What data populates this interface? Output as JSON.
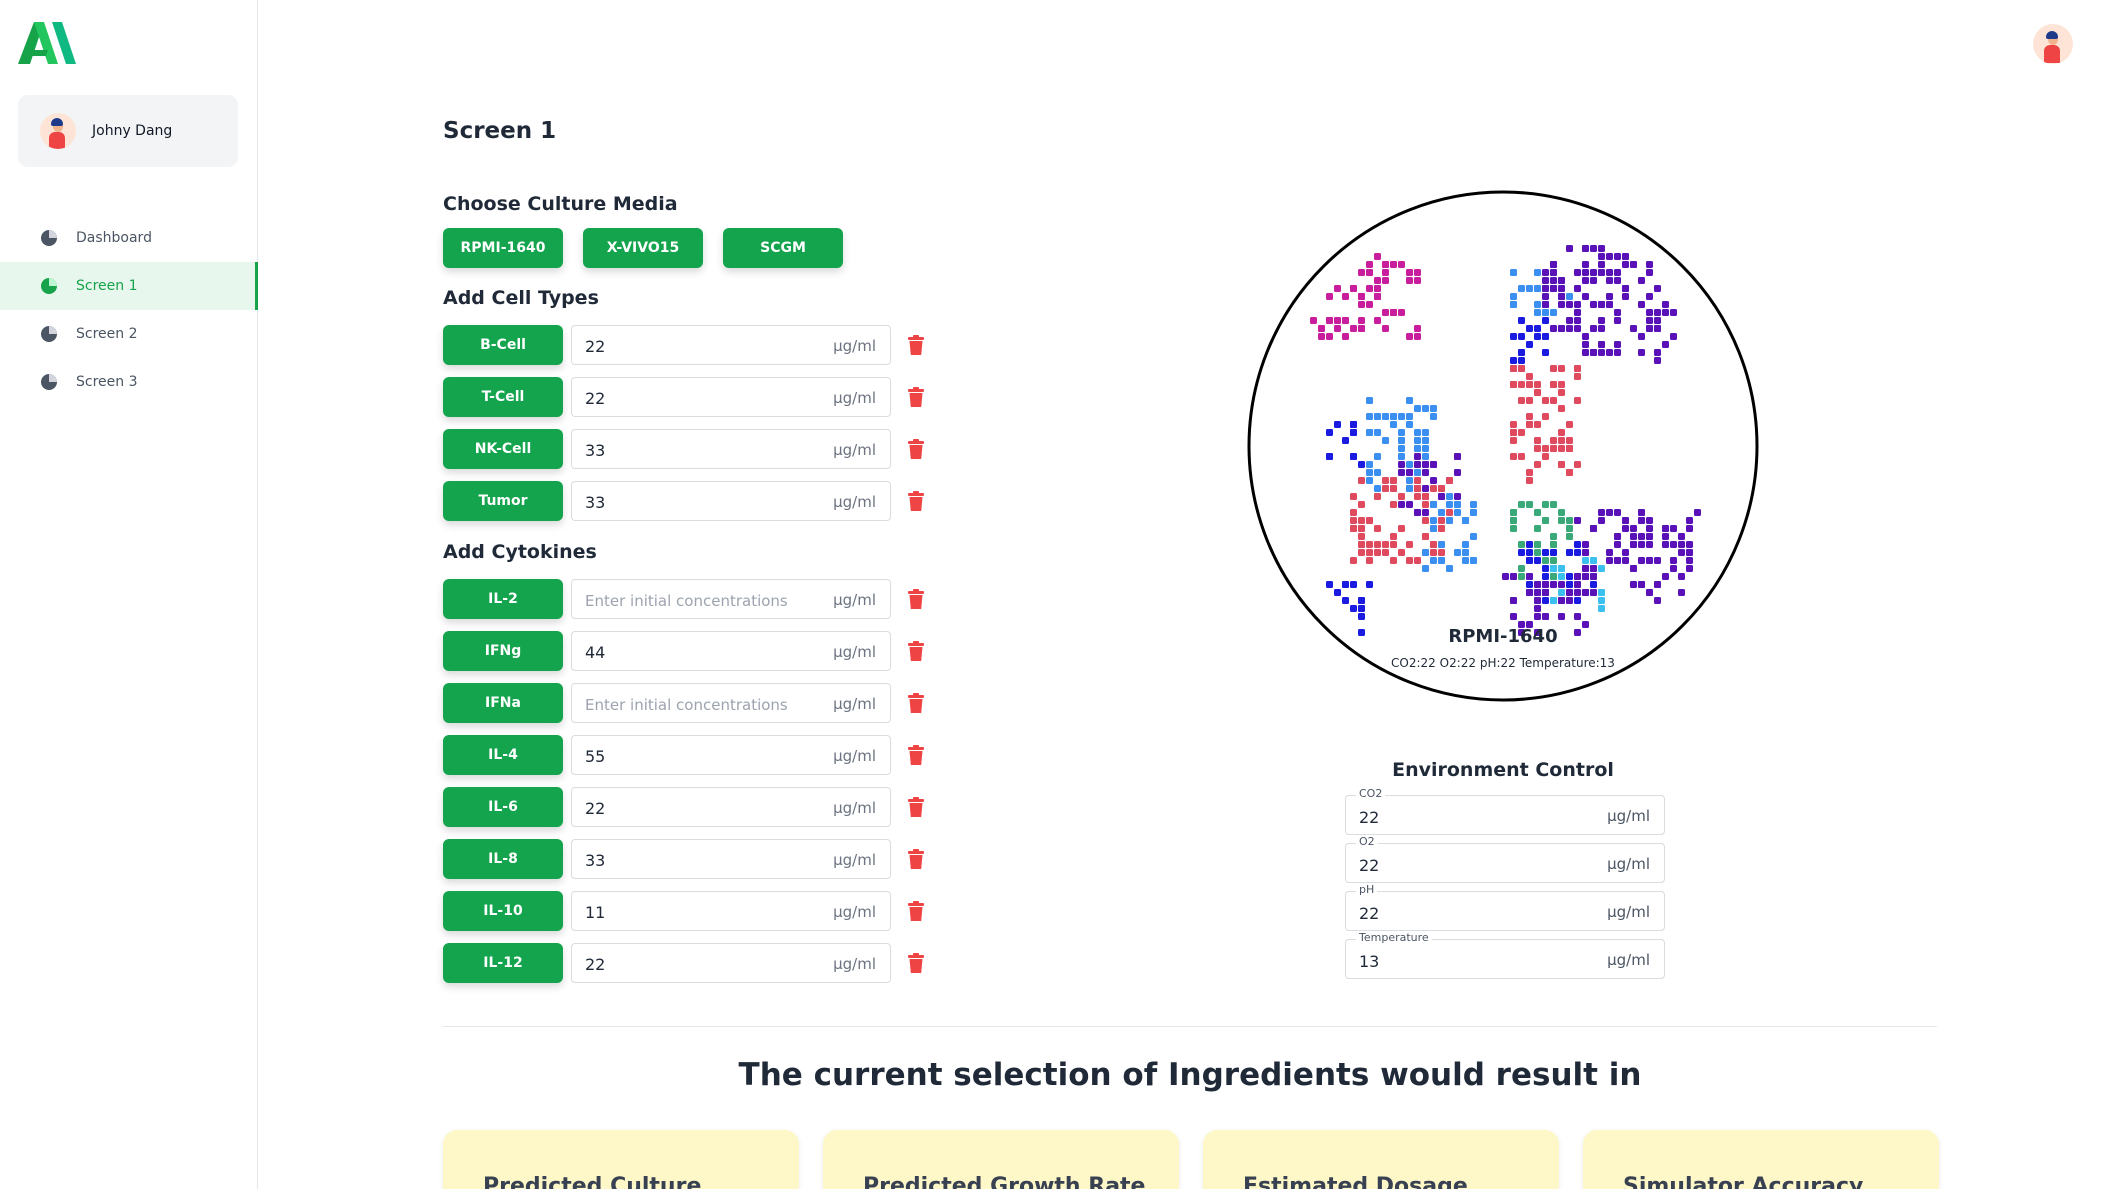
{
  "user": {
    "name": "Johny Dang"
  },
  "nav": [
    {
      "label": "Dashboard"
    },
    {
      "label": "Screen 1"
    },
    {
      "label": "Screen 2"
    },
    {
      "label": "Screen 3"
    }
  ],
  "page": {
    "title": "Screen 1"
  },
  "culture_media": {
    "title": "Choose Culture Media",
    "options": [
      "RPMI-1640",
      "X-VIVO15",
      "SCGM"
    ]
  },
  "cell_types": {
    "title": "Add Cell Types",
    "unit": "μg/ml",
    "items": [
      {
        "label": "B-Cell",
        "value": "22"
      },
      {
        "label": "T-Cell",
        "value": "22"
      },
      {
        "label": "NK-Cell",
        "value": "33"
      },
      {
        "label": "Tumor",
        "value": "33"
      }
    ]
  },
  "cytokines": {
    "title": "Add Cytokines",
    "unit": "μg/ml",
    "placeholder": "Enter initial concentrations",
    "items": [
      {
        "label": "IL-2",
        "value": ""
      },
      {
        "label": "IFNg",
        "value": "44"
      },
      {
        "label": "IFNa",
        "value": ""
      },
      {
        "label": "IL-4",
        "value": "55"
      },
      {
        "label": "IL-6",
        "value": "22"
      },
      {
        "label": "IL-8",
        "value": "33"
      },
      {
        "label": "IL-10",
        "value": "11"
      },
      {
        "label": "IL-12",
        "value": "22"
      }
    ]
  },
  "dish": {
    "label": "RPMI-1640",
    "summary": "CO2:22 O2:22 pH:22 Temperature:13",
    "colors": [
      "#c81e9e",
      "#e04a5f",
      "#1a1ae0",
      "#3a8ff0",
      "#5a12b8",
      "#3aa878",
      "#3cc0f0"
    ]
  },
  "environment": {
    "title": "Environment Control",
    "unit": "μg/ml",
    "fields": [
      {
        "label": "CO2",
        "value": "22"
      },
      {
        "label": "O2",
        "value": "22"
      },
      {
        "label": "pH",
        "value": "22"
      },
      {
        "label": "Temperature",
        "value": "13"
      }
    ]
  },
  "results": {
    "title": "The current selection of Ingredients would result in",
    "cards": [
      "Predicted Culture",
      "Predicted Growth Rate",
      "Estimated Dosage",
      "Simulator Accuracy"
    ]
  },
  "colors": {
    "accent": "#13a44d",
    "danger": "#ef4444",
    "card_bg": "#fef7c8"
  }
}
